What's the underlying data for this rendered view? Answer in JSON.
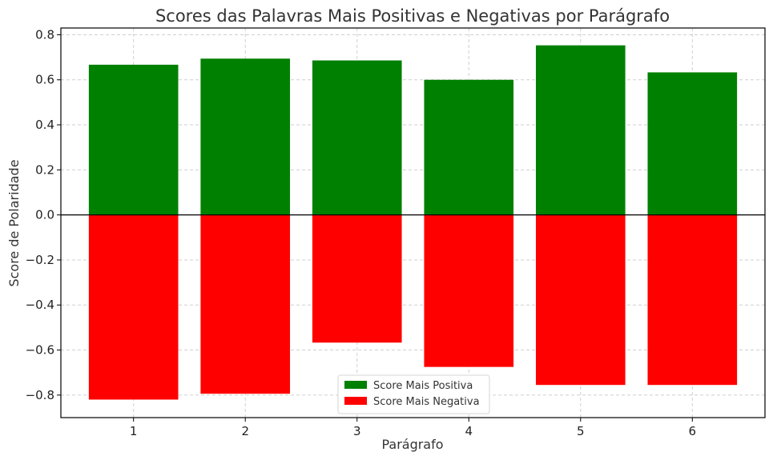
{
  "chart_data": {
    "type": "bar",
    "title": "Scores das Palavras Mais Positivas e Negativas por Parágrafo",
    "xlabel": "Parágrafo",
    "ylabel": "Score de Polaridade",
    "categories": [
      "1",
      "2",
      "3",
      "4",
      "5",
      "6"
    ],
    "ylim": [
      -0.9,
      0.83
    ],
    "yticks": [
      0.8,
      0.6,
      0.4,
      0.2,
      0.0,
      -0.2,
      -0.4,
      -0.6,
      -0.8
    ],
    "ytick_labels": [
      "0.8",
      "0.6",
      "0.4",
      "0.2",
      "0.0",
      "−0.2",
      "−0.4",
      "−0.6",
      "−0.8"
    ],
    "grid": true,
    "legend_position": "bottom-center",
    "series": [
      {
        "name": "Score Mais Positiva",
        "color": "#008000",
        "values": [
          0.667,
          0.694,
          0.686,
          0.6,
          0.753,
          0.633
        ]
      },
      {
        "name": "Score Mais Negativa",
        "color": "#ff0000",
        "values": [
          -0.82,
          -0.794,
          -0.567,
          -0.675,
          -0.755,
          -0.755
        ]
      }
    ]
  }
}
